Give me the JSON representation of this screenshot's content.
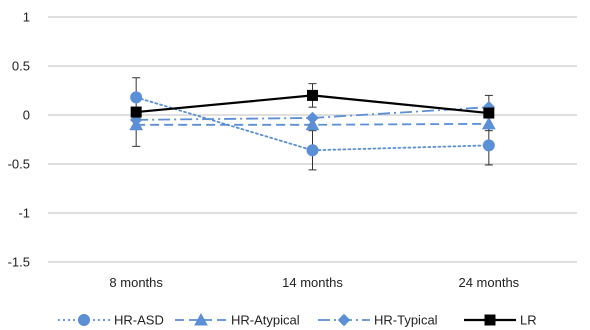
{
  "chart_data": {
    "type": "line",
    "title": "",
    "xlabel": "",
    "ylabel": "",
    "categories": [
      "8 months",
      "14 months",
      "24 months"
    ],
    "ylim": [
      -1.5,
      1
    ],
    "yticks": [
      1,
      0.5,
      0,
      -0.5,
      -1,
      -1.5
    ],
    "ytick_labels": [
      "1",
      "0.5",
      "0",
      "-0.5",
      "-1",
      "-1.5"
    ],
    "grid": "horizontal",
    "legend": "bottom",
    "series": [
      {
        "name": "HR-ASD",
        "values": [
          0.18,
          -0.36,
          -0.31
        ],
        "color": "#5b8fd6",
        "dash": "dotted",
        "marker": "circle",
        "error": [
          null,
          0.2,
          0.2
        ]
      },
      {
        "name": "HR-Atypical",
        "values": [
          -0.1,
          -0.1,
          -0.09
        ],
        "color": "#5b8fd6",
        "dash": "dashed",
        "marker": "triangle",
        "error": [
          null,
          null,
          null
        ]
      },
      {
        "name": "HR-Typical",
        "values": [
          -0.05,
          -0.03,
          0.08
        ],
        "color": "#5b8fd6",
        "dash": "dashdot",
        "marker": "diamond",
        "error": [
          null,
          null,
          null
        ]
      },
      {
        "name": "LR",
        "values": [
          0.03,
          0.2,
          0.02
        ],
        "color": "#000000",
        "dash": "solid",
        "marker": "square",
        "error": [
          0.35,
          0.12,
          0.18
        ]
      }
    ]
  }
}
